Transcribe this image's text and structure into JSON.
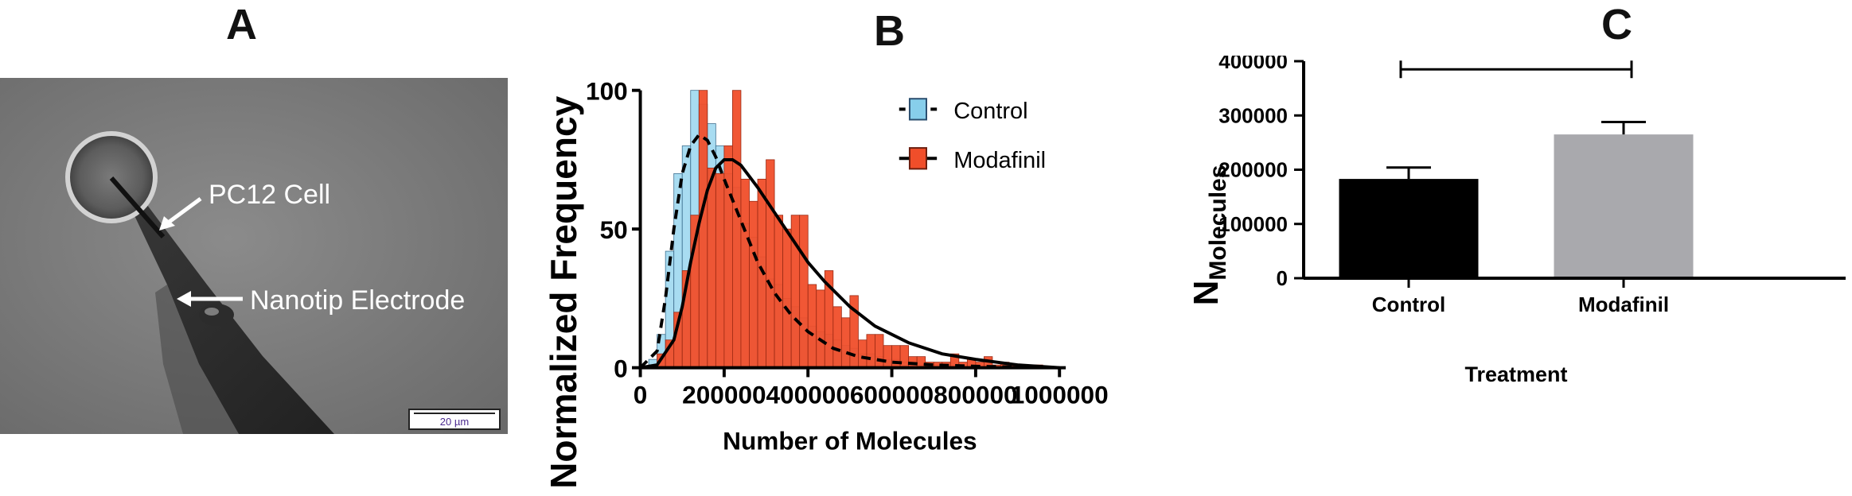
{
  "panels": {
    "a": "A",
    "b": "B",
    "c": "C"
  },
  "micrograph": {
    "cell_label": "PC12 Cell",
    "electrode_label": "Nanotip Electrode",
    "scale_bar_label": "20 µm"
  },
  "chart_data": [
    {
      "type": "bar",
      "histogram": true,
      "xlabel": "Number of Molecules",
      "ylabel": "Normalized Frequency",
      "xlim": [
        0,
        1000000
      ],
      "ylim": [
        0,
        100
      ],
      "xticks": [
        "0",
        "200000",
        "400000",
        "600000",
        "800000",
        "1000000"
      ],
      "yticks": [
        "0",
        "50",
        "100"
      ],
      "bin_width": 20000,
      "legend_position": "top-right",
      "series": [
        {
          "name": "Control",
          "color": "#87CEEB",
          "fit_style": "dashed",
          "bins": [
            10000,
            30000,
            50000,
            70000,
            90000,
            110000,
            130000,
            150000,
            170000,
            190000,
            210000,
            230000,
            250000,
            270000,
            290000,
            310000,
            330000,
            350000,
            370000,
            390000,
            410000,
            430000,
            450000,
            470000,
            490000,
            510000,
            530000,
            550000,
            570000,
            590000,
            610000,
            630000,
            650000,
            670000,
            690000,
            710000,
            730000
          ],
          "values": [
            0,
            3,
            12,
            42,
            70,
            80,
            100,
            95,
            88,
            80,
            70,
            65,
            52,
            47,
            40,
            32,
            30,
            25,
            22,
            18,
            15,
            13,
            12,
            10,
            8,
            7,
            5,
            5,
            4,
            3,
            3,
            2,
            2,
            1,
            1,
            1,
            0
          ]
        },
        {
          "name": "Modafinil",
          "color": "#F04E2A",
          "fit_style": "solid",
          "bins": [
            30000,
            50000,
            70000,
            90000,
            110000,
            130000,
            150000,
            170000,
            190000,
            210000,
            230000,
            250000,
            270000,
            290000,
            310000,
            330000,
            350000,
            370000,
            390000,
            410000,
            430000,
            450000,
            470000,
            490000,
            510000,
            530000,
            550000,
            570000,
            590000,
            610000,
            630000,
            650000,
            670000,
            690000,
            710000,
            730000,
            750000,
            770000,
            790000,
            810000,
            830000,
            850000,
            870000,
            890000,
            910000,
            930000,
            950000,
            970000
          ],
          "values": [
            1,
            5,
            10,
            20,
            35,
            55,
            100,
            72,
            70,
            80,
            100,
            68,
            60,
            68,
            75,
            55,
            50,
            55,
            55,
            30,
            28,
            35,
            22,
            18,
            26,
            10,
            12,
            12,
            8,
            8,
            8,
            4,
            4,
            2,
            2,
            2,
            5,
            2,
            3,
            2,
            4,
            1,
            2,
            1,
            1,
            1,
            1,
            0
          ]
        }
      ],
      "fit_curves": [
        {
          "name": "Control",
          "style": "dashed",
          "x": [
            0,
            40000,
            60000,
            80000,
            100000,
            120000,
            140000,
            160000,
            180000,
            200000,
            240000,
            280000,
            320000,
            360000,
            400000,
            460000,
            520000,
            600000,
            700000,
            800000,
            900000,
            1000000
          ],
          "y": [
            0,
            6,
            25,
            50,
            70,
            80,
            84,
            82,
            76,
            68,
            53,
            38,
            27,
            19,
            13,
            7,
            4,
            2,
            1,
            0.5,
            0.2,
            0
          ]
        },
        {
          "name": "Modafinil",
          "style": "solid",
          "x": [
            0,
            40000,
            80000,
            100000,
            120000,
            140000,
            160000,
            180000,
            200000,
            220000,
            240000,
            260000,
            280000,
            320000,
            360000,
            400000,
            440000,
            500000,
            560000,
            640000,
            720000,
            800000,
            900000,
            1000000
          ],
          "y": [
            0,
            1,
            10,
            22,
            38,
            52,
            64,
            72,
            75,
            75,
            73,
            69,
            65,
            56,
            47,
            38,
            31,
            22,
            15,
            9,
            5,
            3,
            1,
            0
          ]
        }
      ]
    },
    {
      "type": "bar",
      "xlabel": "Treatment",
      "ylabel": "N",
      "ylabel_subscript": "Molecules",
      "categories": [
        "Control",
        "Modafinil"
      ],
      "values": [
        183000,
        265000
      ],
      "errors": [
        21000,
        23000
      ],
      "colors": [
        "#000000",
        "#A9A9AD"
      ],
      "ylim": [
        0,
        400000
      ],
      "yticks": [
        "0",
        "100000",
        "200000",
        "300000",
        "400000"
      ],
      "significance": "*"
    }
  ]
}
